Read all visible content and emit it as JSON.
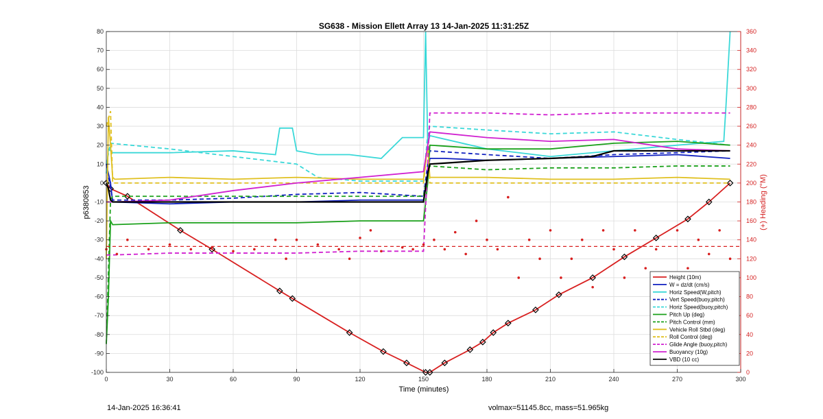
{
  "figure": {
    "title": "SG638 - Mission Ellett Array 13 14-Jan-2025 11:31:25Z",
    "footer_left": "14-Jan-2025 16:36:41",
    "footer_right": "volmax=51145.8cc, mass=51.965kg"
  },
  "chart_data": {
    "type": "line",
    "title": "SG638 - Mission Ellett Array 13 14-Jan-2025 11:31:25Z",
    "xlabel": "Time (minutes)",
    "ylabel": "p6380853",
    "y2label": "(+) Heading (°M)",
    "xlim": [
      0,
      300
    ],
    "ylim": [
      -100,
      80
    ],
    "y2lim": [
      0,
      360
    ],
    "xticks": [
      0,
      30,
      60,
      90,
      120,
      150,
      180,
      210,
      240,
      270,
      300
    ],
    "yticks": [
      -100,
      -90,
      -80,
      -70,
      -60,
      -50,
      -40,
      -30,
      -20,
      -10,
      0,
      10,
      20,
      30,
      40,
      50,
      60,
      70,
      80
    ],
    "y2ticks": [
      0,
      20,
      40,
      60,
      80,
      100,
      120,
      140,
      160,
      180,
      200,
      220,
      240,
      260,
      280,
      300,
      320,
      340,
      360
    ],
    "grid": true,
    "legend_position": "bottom-right",
    "colors": {
      "height": "#d81f1f",
      "w": "#1020c0",
      "horiz": "#3ad8d8",
      "pitch": "#1aa01a",
      "roll": "#e0c020",
      "glide": "#d020d0",
      "vbd": "#000000",
      "heading_axis": "#d42020"
    },
    "series": [
      {
        "name": "Height (10m)",
        "style": "solid",
        "color": "#d81f1f",
        "x": [
          0,
          2,
          10,
          35,
          50,
          82,
          88,
          115,
          131,
          142,
          151,
          153,
          160,
          172,
          178,
          183,
          190,
          203,
          214,
          230,
          245,
          260,
          275,
          285,
          295
        ],
        "y": [
          0,
          -3,
          -7,
          -25,
          -35,
          -57,
          -61,
          -79,
          -89,
          -95,
          -100,
          -100,
          -95,
          -88,
          -84,
          -79,
          -74,
          -67,
          -59,
          -50,
          -39,
          -29,
          -19,
          -10,
          0
        ]
      },
      {
        "name": "W = dz/dt (cm/s)",
        "style": "solid",
        "color": "#1020c0",
        "x": [
          0,
          2,
          3,
          30,
          60,
          90,
          120,
          150,
          152,
          153,
          160,
          180,
          210,
          240,
          270,
          295
        ],
        "y": [
          10,
          0,
          -10,
          -11,
          -10,
          -10,
          -9,
          -9,
          5,
          13,
          13,
          12,
          13,
          14,
          15,
          13
        ]
      },
      {
        "name": "Horiz Speed(W,pitch)",
        "style": "solid",
        "color": "#3ad8d8",
        "x": [
          0,
          1,
          3,
          30,
          60,
          80,
          82,
          88,
          90,
          100,
          115,
          130,
          140,
          150,
          151,
          152,
          153,
          180,
          210,
          240,
          270,
          292,
          293,
          294,
          295
        ],
        "y": [
          5,
          18,
          16,
          16,
          17,
          15,
          29,
          29,
          17,
          15,
          15,
          13,
          24,
          24,
          80,
          20,
          25,
          18,
          14,
          17,
          20,
          22,
          40,
          60,
          80
        ]
      },
      {
        "name": "Vert Speed(buoy,pitch)",
        "style": "dashed",
        "color": "#1020c0",
        "x": [
          0,
          3,
          30,
          60,
          90,
          120,
          150,
          152,
          153,
          180,
          210,
          240,
          270,
          295
        ],
        "y": [
          10,
          -9,
          -9,
          -8,
          -6,
          -5,
          -7,
          10,
          17,
          15,
          13,
          15,
          16,
          17
        ]
      },
      {
        "name": "Horiz Speed(buoy,pitch)",
        "style": "dashed",
        "color": "#3ad8d8",
        "x": [
          0,
          2,
          30,
          60,
          90,
          100,
          120,
          150,
          152,
          153,
          180,
          210,
          240,
          270,
          295
        ],
        "y": [
          10,
          21,
          18,
          14,
          10,
          3,
          1,
          1,
          26,
          30,
          28,
          26,
          27,
          23,
          20
        ]
      },
      {
        "name": "Pitch Up (deg)",
        "style": "solid",
        "color": "#1aa01a",
        "x": [
          0,
          1,
          2,
          3,
          30,
          60,
          90,
          120,
          150,
          152,
          153,
          180,
          210,
          240,
          270,
          295
        ],
        "y": [
          -85,
          -60,
          -20,
          -22,
          -21,
          -21,
          -21,
          -20,
          -20,
          0,
          20,
          18,
          18,
          21,
          22,
          20
        ]
      },
      {
        "name": "Pitch Control (mm)",
        "style": "dashed",
        "color": "#1aa01a",
        "x": [
          0,
          2,
          3,
          30,
          60,
          90,
          120,
          150,
          152,
          153,
          180,
          210,
          240,
          270,
          295
        ],
        "y": [
          -85,
          -9,
          -7,
          -7,
          -7,
          -7,
          -7,
          -7,
          5,
          9,
          7,
          8,
          8,
          9,
          9
        ]
      },
      {
        "name": "Vehicle Roll Stbd (deg)",
        "style": "solid",
        "color": "#e0c020",
        "x": [
          0,
          1,
          2,
          3,
          4,
          30,
          60,
          90,
          120,
          150,
          152,
          153,
          180,
          210,
          240,
          270,
          295
        ],
        "y": [
          -40,
          35,
          20,
          3,
          2,
          3,
          2,
          3,
          2,
          2,
          20,
          3,
          3,
          2,
          2,
          3,
          2
        ]
      },
      {
        "name": "Roll Control (deg)",
        "style": "dashed",
        "color": "#e0c020",
        "x": [
          0,
          2,
          3,
          30,
          60,
          90,
          120,
          150,
          152,
          153,
          180,
          210,
          240,
          270,
          295
        ],
        "y": [
          30,
          38,
          0,
          0,
          0,
          0,
          0,
          0,
          20,
          0,
          0,
          0,
          0,
          0,
          0
        ]
      },
      {
        "name": "Glide Angle (buoy,pitch)",
        "style": "dashed",
        "color": "#d020d0",
        "x": [
          0,
          3,
          30,
          60,
          90,
          120,
          150,
          152,
          153,
          180,
          210,
          240,
          270,
          295
        ],
        "y": [
          -38,
          -38,
          -37,
          -37,
          -37,
          -36,
          -36,
          10,
          37,
          37,
          36,
          37,
          37,
          37
        ]
      },
      {
        "name": "Buoyancy (10g)",
        "style": "solid",
        "color": "#d020d0",
        "x": [
          0,
          3,
          30,
          60,
          90,
          120,
          150,
          153,
          180,
          210,
          240,
          270,
          295
        ],
        "y": [
          -10,
          -10,
          -9,
          -4,
          0,
          3,
          6,
          27,
          24,
          22,
          23,
          18,
          17
        ]
      },
      {
        "name": "VBD (10 cc)",
        "style": "solid",
        "color": "#000000",
        "x": [
          0,
          1,
          2,
          3,
          30,
          60,
          90,
          120,
          150,
          152,
          153,
          180,
          210,
          230,
          240,
          270,
          295
        ],
        "y": [
          0,
          -3,
          -9,
          -10,
          -10,
          -10,
          -10,
          -10,
          -10,
          5,
          10,
          12,
          13,
          14,
          17,
          17,
          17
        ]
      },
      {
        "name": "Heading (°M)",
        "style": "dotted",
        "color": "#d81f1f",
        "axis": "right",
        "reference_line": 133,
        "x": [
          0,
          5,
          10,
          20,
          30,
          40,
          50,
          60,
          70,
          80,
          85,
          90,
          100,
          110,
          115,
          120,
          125,
          130,
          140,
          145,
          150,
          155,
          160,
          165,
          170,
          175,
          180,
          185,
          190,
          195,
          200,
          205,
          210,
          215,
          220,
          225,
          230,
          235,
          240,
          245,
          250,
          255,
          260,
          265,
          270,
          275,
          280,
          285,
          290,
          295
        ],
        "y": [
          130,
          125,
          140,
          130,
          135,
          130,
          132,
          128,
          130,
          140,
          120,
          140,
          135,
          130,
          120,
          142,
          150,
          128,
          132,
          130,
          135,
          140,
          130,
          148,
          125,
          160,
          140,
          130,
          185,
          100,
          140,
          120,
          150,
          100,
          120,
          140,
          90,
          150,
          130,
          100,
          150,
          110,
          130,
          90,
          150,
          110,
          140,
          125,
          150,
          120
        ]
      }
    ]
  }
}
